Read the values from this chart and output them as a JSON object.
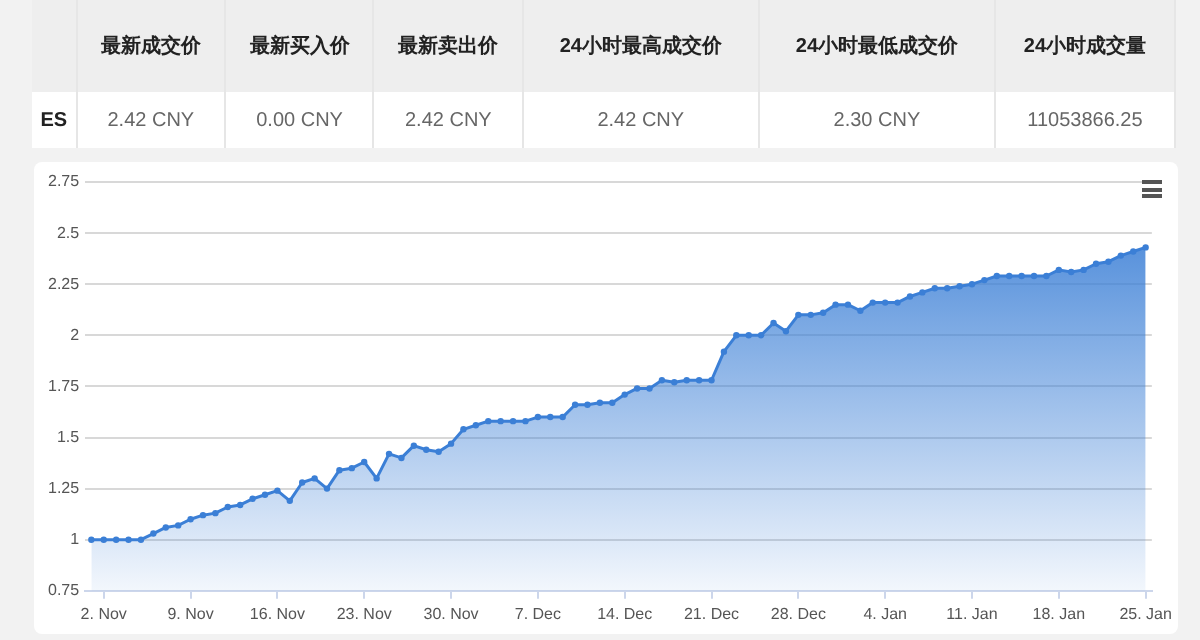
{
  "chart_data": [
    {
      "type": "other",
      "categories": [
        null,
        "最新成交价",
        "最新买入价",
        "最新卖出价",
        "24小时最高成交价",
        "24小时最低成交价",
        "24小时成交量"
      ],
      "y_categories": [
        "ES"
      ],
      "cell_labels": [
        [
          "2.42 CNY",
          "0.00 CNY",
          "2.42 CNY",
          "2.42 CNY",
          "2.30 CNY",
          "11053866.25"
        ]
      ]
    },
    {
      "type": "area",
      "color": "#3b7fd6",
      "marker": "circle",
      "grid": "y",
      "legend": false,
      "categories": [
        null,
        "2. Nov",
        null,
        null,
        null,
        null,
        null,
        null,
        "9. Nov",
        null,
        null,
        null,
        null,
        null,
        null,
        "16. Nov",
        null,
        null,
        null,
        null,
        null,
        null,
        "23. Nov",
        null,
        null,
        null,
        null,
        null,
        null,
        "30. Nov",
        null,
        null,
        null,
        null,
        null,
        null,
        "7. Dec",
        null,
        null,
        null,
        null,
        null,
        null,
        "14. Dec",
        null,
        null,
        null,
        null,
        null,
        null,
        "21. Dec",
        null,
        null,
        null,
        null,
        null,
        null,
        "28. Dec",
        null,
        null,
        null,
        null,
        null,
        null,
        "4. Jan",
        null,
        null,
        null,
        null,
        null,
        null,
        "11. Jan",
        null,
        null,
        null,
        null,
        null,
        null,
        "18. Jan",
        null,
        null,
        null,
        null,
        null,
        null,
        "25. Jan"
      ],
      "values": [
        1,
        1,
        1,
        1,
        1,
        1.03,
        1.06,
        1.07,
        1.1,
        1.12,
        1.13,
        1.16,
        1.17,
        1.2,
        1.22,
        1.24,
        1.19,
        1.28,
        1.3,
        1.25,
        1.34,
        1.35,
        1.38,
        1.3,
        1.42,
        1.4,
        1.46,
        1.44,
        1.43,
        1.47,
        1.54,
        1.56,
        1.58,
        1.58,
        1.58,
        1.58,
        1.6,
        1.6,
        1.6,
        1.66,
        1.66,
        1.67,
        1.67,
        1.71,
        1.74,
        1.74,
        1.78,
        1.77,
        1.78,
        1.78,
        1.78,
        1.92,
        2,
        2,
        2,
        2.06,
        2.02,
        2.1,
        2.1,
        2.11,
        2.15,
        2.15,
        2.12,
        2.16,
        2.16,
        2.16,
        2.19,
        2.21,
        2.23,
        2.23,
        2.24,
        2.25,
        2.27,
        2.29,
        2.29,
        2.29,
        2.29,
        2.29,
        2.32,
        2.31,
        2.32,
        2.35,
        2.36,
        2.39,
        2.41,
        2.43
      ],
      "ylim": [
        0.75,
        2.75
      ],
      "yticks": [
        0.75,
        1,
        1.25,
        1.5,
        1.75,
        2,
        2.25,
        2.5,
        2.75
      ]
    }
  ]
}
